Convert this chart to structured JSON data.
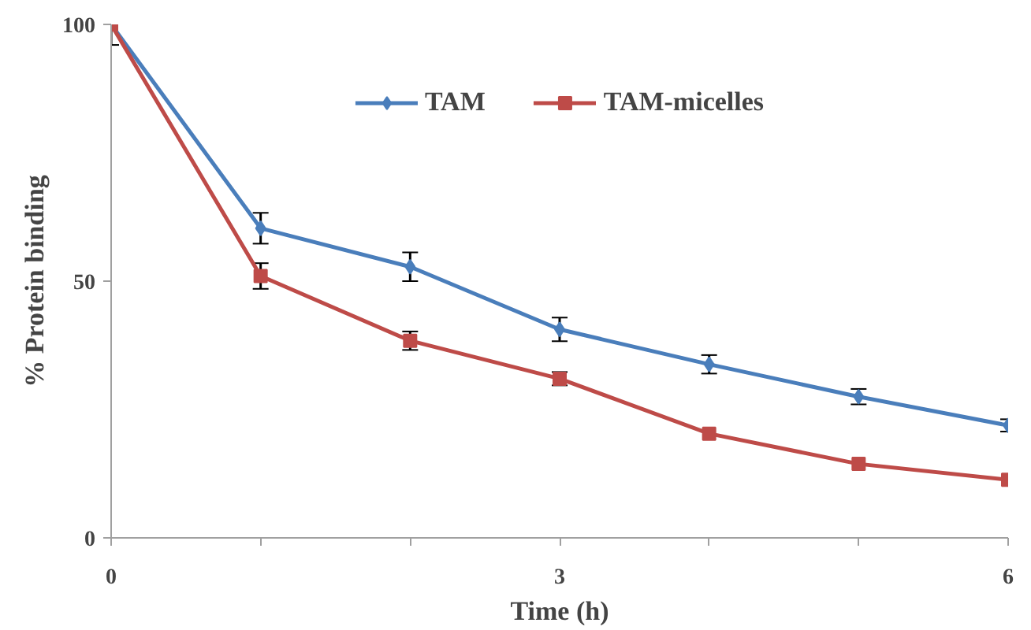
{
  "chart_data": {
    "type": "line",
    "xlabel": "Time (h)",
    "ylabel": "% Protein binding",
    "x": [
      0,
      1,
      2,
      3,
      4,
      5,
      6
    ],
    "xlim": [
      0,
      6
    ],
    "ylim": [
      0,
      100
    ],
    "xticks": [
      0,
      {
        "value": 1,
        "label": null
      },
      {
        "value": 2,
        "label": null
      },
      3,
      {
        "value": 4,
        "label": null
      },
      {
        "value": 5,
        "label": null
      },
      6
    ],
    "yticks": [
      0,
      50,
      100
    ],
    "grid": false,
    "legend": "top",
    "series": [
      {
        "name": "TAM",
        "color": "#4a7ebb",
        "marker": "diamond",
        "values": [
          100,
          60.3,
          52.8,
          40.6,
          33.8,
          27.5,
          21.9
        ],
        "errors": [
          4,
          3,
          2.8,
          2.3,
          1.8,
          1.5,
          1.2
        ]
      },
      {
        "name": "TAM-micelles",
        "color": "#be4b48",
        "marker": "square",
        "values": [
          100,
          51,
          38.4,
          31,
          20.3,
          14.4,
          11.3
        ],
        "errors": [
          null,
          2.5,
          1.8,
          1.3,
          null,
          null,
          null
        ]
      }
    ]
  }
}
